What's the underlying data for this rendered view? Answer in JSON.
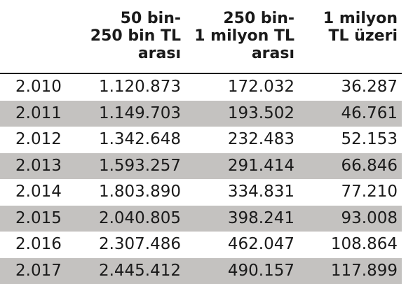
{
  "header": {
    "col0": "",
    "col1": "50 bin-\n250 bin TL\narası",
    "col2": "250 bin-\n1 milyon TL\narası",
    "col3": "1 milyon\nTL üzeri"
  },
  "rows": [
    {
      "year": "2.010",
      "v1": "1.120.873",
      "v2": "172.032",
      "v3": "36.287"
    },
    {
      "year": "2.011",
      "v1": "1.149.703",
      "v2": "193.502",
      "v3": "46.761"
    },
    {
      "year": "2.012",
      "v1": "1.342.648",
      "v2": "232.483",
      "v3": "52.153"
    },
    {
      "year": "2.013",
      "v1": "1.593.257",
      "v2": "291.414",
      "v3": "66.846"
    },
    {
      "year": "2.014",
      "v1": "1.803.890",
      "v2": "334.831",
      "v3": "77.210"
    },
    {
      "year": "2.015",
      "v1": "2.040.805",
      "v2": "398.241",
      "v3": "93.008"
    },
    {
      "year": "2.016",
      "v1": "2.307.486",
      "v2": "462.047",
      "v3": "108.864"
    },
    {
      "year": "2.017",
      "v1": "2.445.412",
      "v2": "490.157",
      "v3": "117.899"
    }
  ],
  "colors": {
    "shaded_row": "#c4c2c0",
    "text": "#1a1a1a",
    "rule": "#1a1a1a"
  }
}
